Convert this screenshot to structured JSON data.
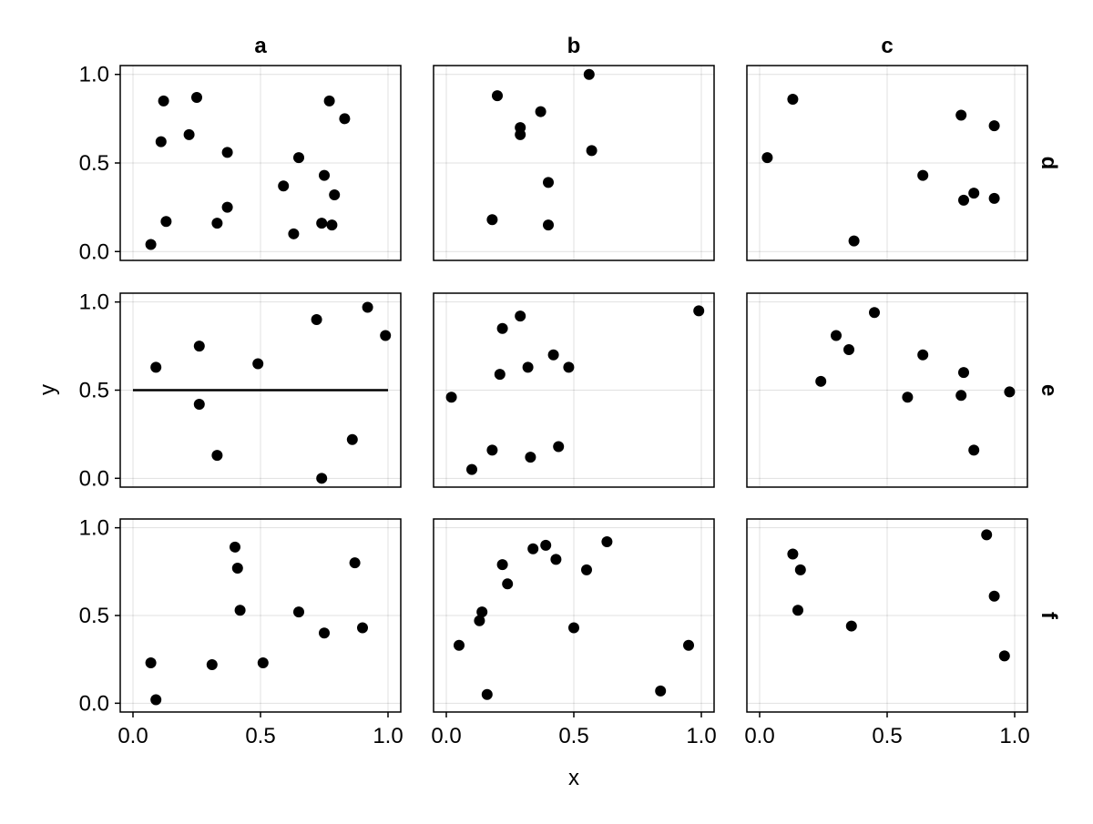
{
  "chart_data": {
    "type": "scatter",
    "xlabel": "x",
    "ylabel": "y",
    "xlim": [
      -0.05,
      1.05
    ],
    "ylim": [
      -0.05,
      1.05
    ],
    "xticks": [
      0,
      0.5,
      1
    ],
    "yticks": [
      0,
      0.5,
      1
    ],
    "xtick_labels": [
      "0.0",
      "0.5",
      "1.0"
    ],
    "ytick_labels": [
      "0.0",
      "0.5",
      "1.0"
    ],
    "grid": true,
    "point_color": "#000000",
    "columns": [
      "a",
      "b",
      "c"
    ],
    "rows": [
      "d",
      "e",
      "f"
    ],
    "panels": [
      {
        "col": "a",
        "row": "d",
        "points": [
          [
            0.07,
            0.04
          ],
          [
            0.11,
            0.62
          ],
          [
            0.12,
            0.85
          ],
          [
            0.13,
            0.17
          ],
          [
            0.22,
            0.66
          ],
          [
            0.25,
            0.87
          ],
          [
            0.33,
            0.16
          ],
          [
            0.37,
            0.56
          ],
          [
            0.37,
            0.25
          ],
          [
            0.59,
            0.37
          ],
          [
            0.63,
            0.1
          ],
          [
            0.65,
            0.53
          ],
          [
            0.74,
            0.16
          ],
          [
            0.75,
            0.43
          ],
          [
            0.77,
            0.85
          ],
          [
            0.78,
            0.15
          ],
          [
            0.79,
            0.32
          ],
          [
            0.83,
            0.75
          ]
        ]
      },
      {
        "col": "b",
        "row": "d",
        "points": [
          [
            0.18,
            0.18
          ],
          [
            0.2,
            0.88
          ],
          [
            0.29,
            0.66
          ],
          [
            0.29,
            0.7
          ],
          [
            0.37,
            0.79
          ],
          [
            0.4,
            0.39
          ],
          [
            0.4,
            0.15
          ],
          [
            0.56,
            1.0
          ],
          [
            0.57,
            0.57
          ]
        ]
      },
      {
        "col": "c",
        "row": "d",
        "points": [
          [
            0.03,
            0.53
          ],
          [
            0.13,
            0.86
          ],
          [
            0.37,
            0.06
          ],
          [
            0.64,
            0.43
          ],
          [
            0.79,
            0.77
          ],
          [
            0.8,
            0.29
          ],
          [
            0.84,
            0.33
          ],
          [
            0.92,
            0.71
          ],
          [
            0.92,
            0.3
          ]
        ]
      },
      {
        "col": "a",
        "row": "e",
        "hline": 0.5,
        "points": [
          [
            0.09,
            0.63
          ],
          [
            0.26,
            0.75
          ],
          [
            0.26,
            0.42
          ],
          [
            0.33,
            0.13
          ],
          [
            0.49,
            0.65
          ],
          [
            0.72,
            0.9
          ],
          [
            0.74,
            0.0
          ],
          [
            0.86,
            0.22
          ],
          [
            0.92,
            0.97
          ],
          [
            0.99,
            0.81
          ]
        ]
      },
      {
        "col": "b",
        "row": "e",
        "points": [
          [
            0.02,
            0.46
          ],
          [
            0.1,
            0.05
          ],
          [
            0.18,
            0.16
          ],
          [
            0.21,
            0.59
          ],
          [
            0.22,
            0.85
          ],
          [
            0.29,
            0.92
          ],
          [
            0.32,
            0.63
          ],
          [
            0.33,
            0.12
          ],
          [
            0.42,
            0.7
          ],
          [
            0.44,
            0.18
          ],
          [
            0.48,
            0.63
          ],
          [
            0.99,
            0.95
          ]
        ]
      },
      {
        "col": "c",
        "row": "e",
        "points": [
          [
            0.24,
            0.55
          ],
          [
            0.3,
            0.81
          ],
          [
            0.35,
            0.73
          ],
          [
            0.45,
            0.94
          ],
          [
            0.58,
            0.46
          ],
          [
            0.64,
            0.7
          ],
          [
            0.79,
            0.47
          ],
          [
            0.8,
            0.6
          ],
          [
            0.84,
            0.16
          ],
          [
            0.98,
            0.49
          ]
        ]
      },
      {
        "col": "a",
        "row": "f",
        "points": [
          [
            0.07,
            0.23
          ],
          [
            0.09,
            0.02
          ],
          [
            0.31,
            0.22
          ],
          [
            0.4,
            0.89
          ],
          [
            0.41,
            0.77
          ],
          [
            0.42,
            0.53
          ],
          [
            0.51,
            0.23
          ],
          [
            0.65,
            0.52
          ],
          [
            0.75,
            0.4
          ],
          [
            0.87,
            0.8
          ],
          [
            0.9,
            0.43
          ]
        ]
      },
      {
        "col": "b",
        "row": "f",
        "points": [
          [
            0.05,
            0.33
          ],
          [
            0.13,
            0.47
          ],
          [
            0.14,
            0.52
          ],
          [
            0.16,
            0.05
          ],
          [
            0.22,
            0.79
          ],
          [
            0.24,
            0.68
          ],
          [
            0.34,
            0.88
          ],
          [
            0.39,
            0.9
          ],
          [
            0.43,
            0.82
          ],
          [
            0.5,
            0.43
          ],
          [
            0.55,
            0.76
          ],
          [
            0.63,
            0.92
          ],
          [
            0.84,
            0.07
          ],
          [
            0.95,
            0.33
          ]
        ]
      },
      {
        "col": "c",
        "row": "f",
        "points": [
          [
            0.13,
            0.85
          ],
          [
            0.15,
            0.53
          ],
          [
            0.16,
            0.76
          ],
          [
            0.36,
            0.44
          ],
          [
            0.89,
            0.96
          ],
          [
            0.92,
            0.61
          ],
          [
            0.96,
            0.27
          ]
        ]
      }
    ]
  }
}
